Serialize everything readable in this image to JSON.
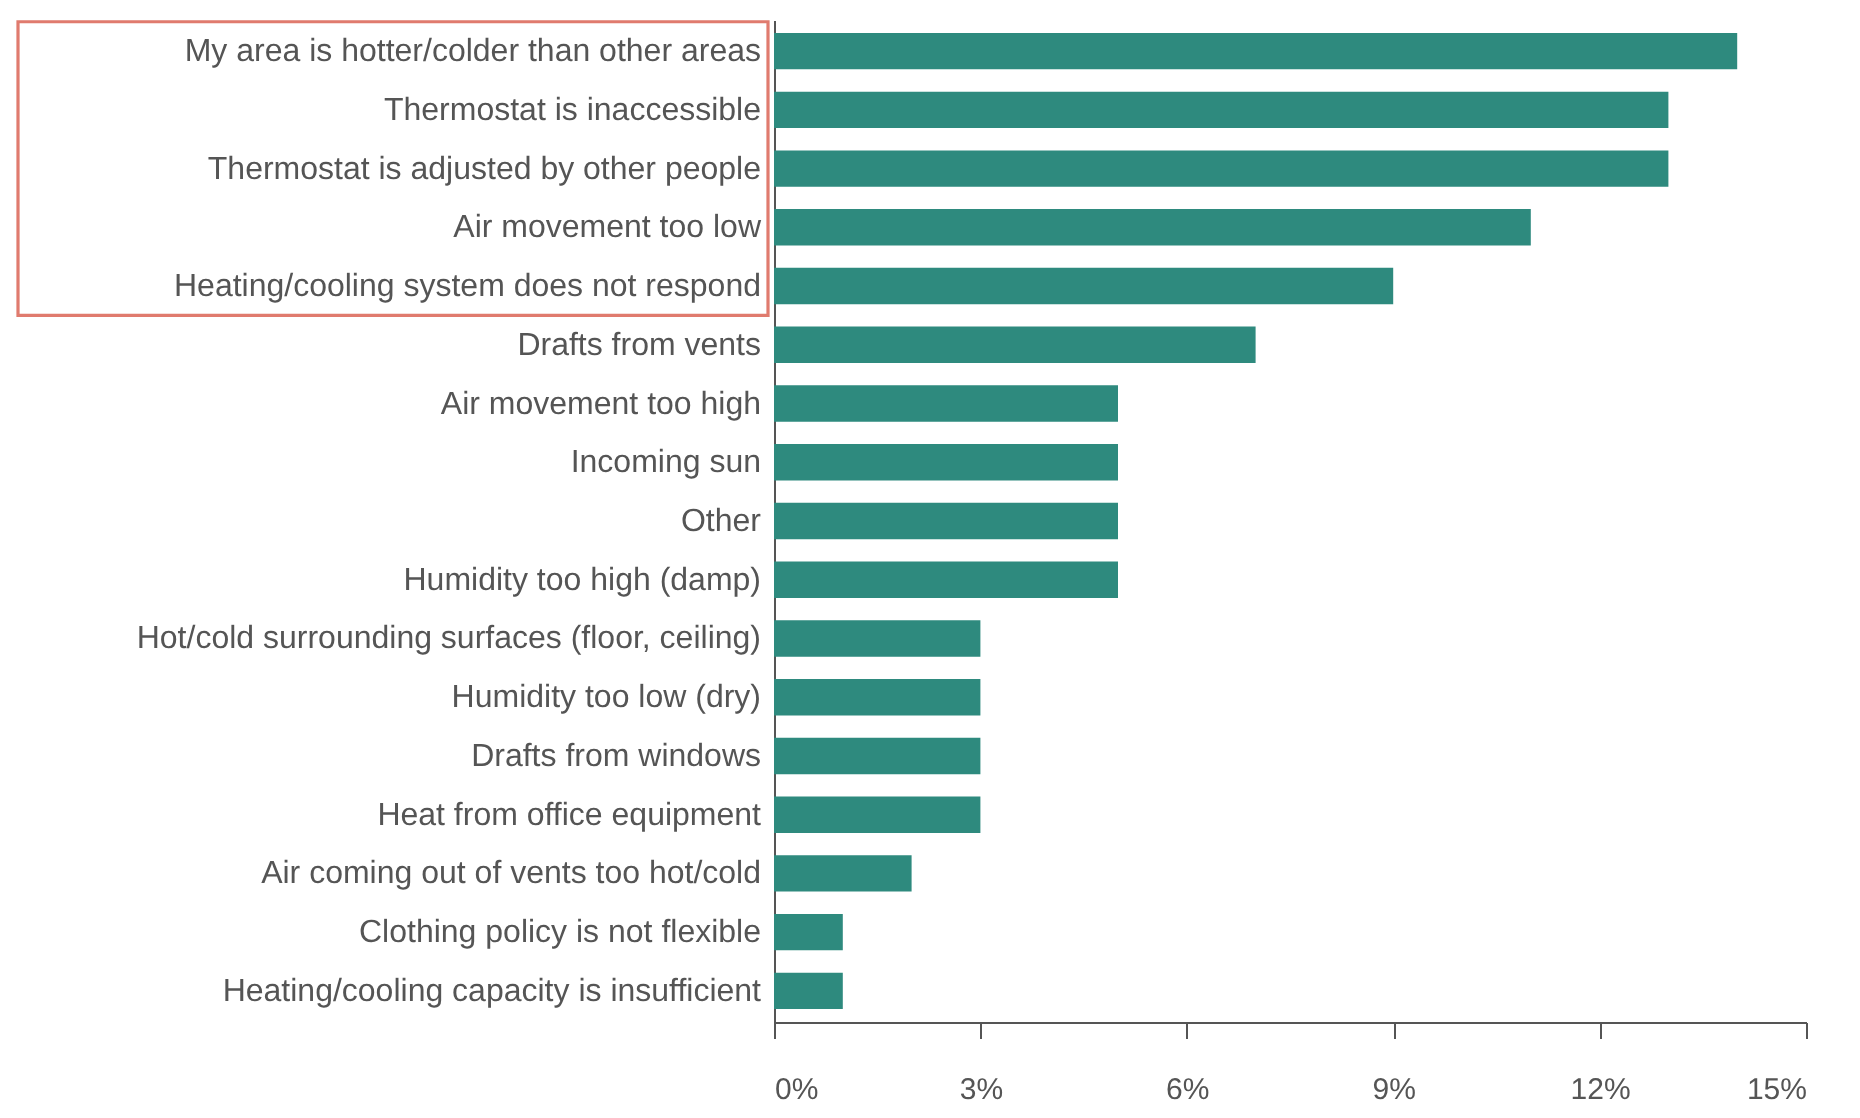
{
  "chart_data": {
    "type": "bar",
    "orientation": "horizontal",
    "categories": [
      "My area is hotter/colder than other areas",
      "Thermostat is inaccessible",
      "Thermostat is adjusted by other people",
      "Air movement too low",
      "Heating/cooling system does not respond",
      "Drafts from vents",
      "Air movement too high",
      "Incoming sun",
      "Other",
      "Humidity too high (damp)",
      "Hot/cold surrounding surfaces (floor, ceiling)",
      "Humidity too low (dry)",
      "Drafts from windows",
      "Heat from office equipment",
      "Air coming out of vents too hot/cold",
      "Clothing policy is not flexible",
      "Heating/cooling capacity is insufficient"
    ],
    "values": [
      14,
      13,
      13,
      11,
      9,
      7,
      5,
      5,
      5,
      5,
      3,
      3,
      3,
      3,
      2,
      1,
      1
    ],
    "color": "#2e8a7e",
    "xlim": [
      0,
      15
    ],
    "xticks": [
      {
        "value": 0,
        "label": "0%"
      },
      {
        "value": 3,
        "label": "3%"
      },
      {
        "value": 6,
        "label": "6%"
      },
      {
        "value": 9,
        "label": "9%"
      },
      {
        "value": 12,
        "label": "12%"
      },
      {
        "value": 15,
        "label": "15%"
      }
    ]
  }
}
